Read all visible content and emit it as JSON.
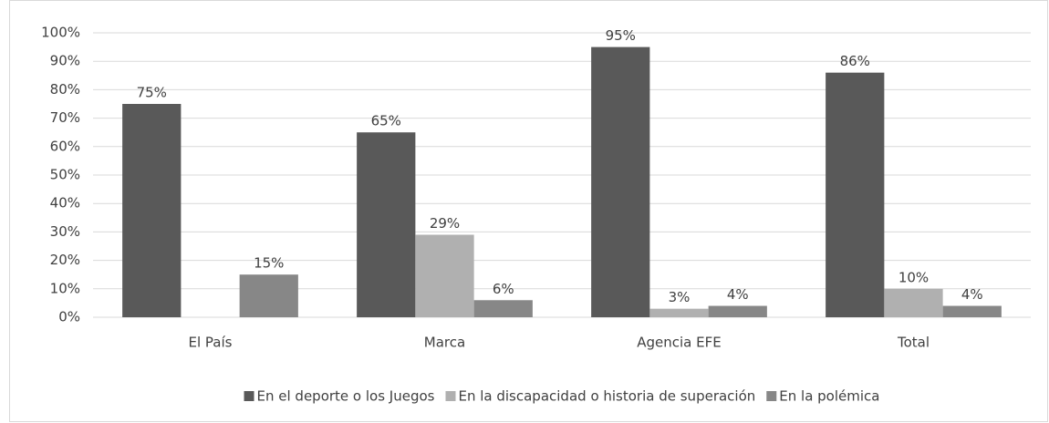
{
  "chart_data": {
    "type": "bar",
    "categories": [
      "El País",
      "Marca",
      "Agencia EFE",
      "Total"
    ],
    "series": [
      {
        "name": "En el deporte o los Juegos",
        "color": "#595959",
        "values": [
          75,
          65,
          95,
          86
        ],
        "value_labels": [
          "75%",
          "65%",
          "95%",
          "86%"
        ]
      },
      {
        "name": "En la discapacidad o historia de superación",
        "color": "#b0b0b0",
        "values": [
          null,
          29,
          3,
          10
        ],
        "value_labels": [
          null,
          "29%",
          "3%",
          "10%"
        ]
      },
      {
        "name": "En la polémica",
        "color": "#878787",
        "values": [
          15,
          6,
          4,
          4
        ],
        "value_labels": [
          "15%",
          "6%",
          "4%",
          "4%"
        ]
      }
    ],
    "ylim": [
      0,
      100
    ],
    "yticks": [
      {
        "value": 0,
        "label": "0%"
      },
      {
        "value": 10,
        "label": "10%"
      },
      {
        "value": 20,
        "label": "20%"
      },
      {
        "value": 30,
        "label": "30%"
      },
      {
        "value": 40,
        "label": "40%"
      },
      {
        "value": 50,
        "label": "50%"
      },
      {
        "value": 60,
        "label": "60%"
      },
      {
        "value": 70,
        "label": "70%"
      },
      {
        "value": 80,
        "label": "80%"
      },
      {
        "value": 90,
        "label": "90%"
      },
      {
        "value": 100,
        "label": "100%"
      }
    ],
    "grid": true,
    "legend": "bottom"
  }
}
